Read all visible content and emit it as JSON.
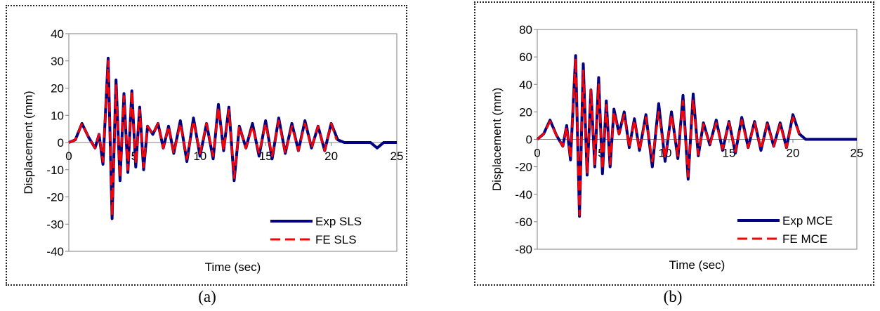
{
  "panels": [
    {
      "caption": "(a)",
      "chart_data": {
        "type": "line",
        "title": "",
        "xlabel": "Time (sec)",
        "ylabel": "Displacement (mm)",
        "xlim": [
          0,
          25
        ],
        "ylim": [
          -40,
          40
        ],
        "xticks": [
          "0",
          "5",
          "10",
          "15",
          "20",
          "25"
        ],
        "yticks": [
          "-40",
          "-30",
          "-20",
          "-10",
          "0",
          "10",
          "20",
          "30",
          "40"
        ],
        "legend": "bottom-right",
        "grid": false,
        "series": [
          {
            "name": "Exp SLS",
            "color": "#000080",
            "style": "solid",
            "x": [
              0,
              0.5,
              1.0,
              1.5,
              2.0,
              2.3,
              2.6,
              3.0,
              3.3,
              3.6,
              3.9,
              4.2,
              4.5,
              4.8,
              5.1,
              5.4,
              5.7,
              6.0,
              6.4,
              6.8,
              7.2,
              7.6,
              8.0,
              8.5,
              9.0,
              9.5,
              10.0,
              10.5,
              11.0,
              11.4,
              11.8,
              12.2,
              12.6,
              13.0,
              13.5,
              14.0,
              14.5,
              15.0,
              15.5,
              16.0,
              16.5,
              17.0,
              17.5,
              18.0,
              18.5,
              19.0,
              19.5,
              20.0,
              20.5,
              21.0,
              22.0,
              23.0,
              23.5,
              24.0,
              24.5,
              25.0
            ],
            "y": [
              0,
              1,
              7,
              2,
              -2,
              3,
              -8,
              31,
              -28,
              23,
              -14,
              18,
              -11,
              19,
              -9,
              13,
              -10,
              6,
              3,
              7,
              -2,
              6,
              -4,
              8,
              -7,
              9,
              -5,
              7,
              -6,
              14,
              -3,
              13,
              -14,
              6,
              -2,
              7,
              -5,
              8,
              -6,
              9,
              -4,
              7,
              -3,
              8,
              -2,
              6,
              -3,
              7,
              1,
              0,
              0,
              0,
              -2,
              0,
              0,
              0
            ]
          },
          {
            "name": "FE SLS",
            "color": "#ff0000",
            "style": "dashed",
            "x": [
              0,
              0.5,
              1.0,
              1.5,
              2.0,
              2.3,
              2.6,
              3.0,
              3.3,
              3.6,
              3.9,
              4.2,
              4.5,
              4.8,
              5.1,
              5.4,
              5.7,
              6.0,
              6.4,
              6.8,
              7.2,
              7.6,
              8.0,
              8.5,
              9.0,
              9.5,
              10.0,
              10.5,
              11.0,
              11.4,
              11.8,
              12.2,
              12.6,
              13.0,
              13.5,
              14.0,
              14.5,
              15.0,
              15.5,
              16.0,
              16.5,
              17.0,
              17.5,
              18.0,
              18.5,
              19.0,
              19.5,
              20.0,
              20.4
            ],
            "y": [
              0,
              1,
              7,
              2,
              -2,
              3,
              -7,
              30,
              -27,
              21,
              -13,
              17,
              -10,
              19,
              -8,
              12,
              -9,
              6,
              3,
              7,
              -2,
              6,
              -4,
              7,
              -6,
              8,
              -4,
              7,
              -5,
              13,
              -3,
              12,
              -13,
              6,
              -2,
              6,
              -4,
              7,
              -5,
              8,
              -4,
              6,
              -3,
              7,
              -2,
              6,
              -3,
              7,
              1
            ]
          }
        ]
      }
    },
    {
      "caption": "(b)",
      "chart_data": {
        "type": "line",
        "title": "",
        "xlabel": "Time (sec)",
        "ylabel": "Displacement (mm)",
        "xlim": [
          0,
          25
        ],
        "ylim": [
          -80,
          80
        ],
        "xticks": [
          "0",
          "5",
          "10",
          "15",
          "20",
          "25"
        ],
        "yticks": [
          "-80",
          "-60",
          "-40",
          "-20",
          "0",
          "20",
          "40",
          "60",
          "80"
        ],
        "legend": "bottom-right",
        "grid": false,
        "series": [
          {
            "name": "Exp MCE",
            "color": "#000080",
            "style": "solid",
            "x": [
              0,
              0.5,
              1.0,
              1.5,
              2.0,
              2.3,
              2.6,
              3.0,
              3.3,
              3.6,
              3.9,
              4.2,
              4.5,
              4.8,
              5.1,
              5.4,
              5.7,
              6.0,
              6.4,
              6.8,
              7.2,
              7.6,
              8.0,
              8.5,
              9.0,
              9.5,
              10.0,
              10.5,
              11.0,
              11.4,
              11.8,
              12.2,
              12.6,
              13.0,
              13.5,
              14.0,
              14.5,
              15.0,
              15.5,
              16.0,
              16.5,
              17.0,
              17.5,
              18.0,
              18.5,
              19.0,
              19.5,
              20.0,
              20.5,
              21.0,
              22.0,
              23.0,
              24.0,
              25.0
            ],
            "y": [
              0,
              4,
              14,
              3,
              -5,
              10,
              -15,
              61,
              -56,
              55,
              -26,
              36,
              -20,
              45,
              -25,
              28,
              -20,
              22,
              4,
              20,
              -6,
              15,
              -8,
              18,
              -20,
              26,
              -16,
              20,
              -14,
              32,
              -29,
              33,
              -12,
              12,
              -4,
              14,
              -8,
              13,
              -10,
              16,
              -6,
              13,
              -8,
              12,
              -5,
              12,
              -6,
              18,
              4,
              0,
              0,
              0,
              0,
              0
            ]
          },
          {
            "name": "FE MCE",
            "color": "#ff0000",
            "style": "dashed",
            "x": [
              0,
              0.5,
              1.0,
              1.5,
              2.0,
              2.3,
              2.6,
              3.0,
              3.3,
              3.6,
              3.9,
              4.2,
              4.5,
              4.8,
              5.1,
              5.4,
              5.7,
              6.0,
              6.4,
              6.8,
              7.2,
              7.6,
              8.0,
              8.5,
              9.0,
              9.5,
              10.0,
              10.5,
              11.0,
              11.4,
              11.8,
              12.2,
              12.6,
              13.0,
              13.5,
              14.0,
              14.5,
              15.0,
              15.5,
              16.0,
              16.5,
              17.0,
              17.5,
              18.0,
              18.5,
              19.0,
              19.5,
              20.0,
              20.5
            ],
            "y": [
              0,
              4,
              13,
              3,
              -5,
              9,
              -14,
              59,
              -55,
              50,
              -24,
              36,
              -18,
              40,
              -22,
              25,
              -18,
              20,
              4,
              18,
              -6,
              14,
              -8,
              16,
              -16,
              20,
              -14,
              18,
              -12,
              28,
              -27,
              29,
              -11,
              11,
              -4,
              12,
              -7,
              12,
              -9,
              14,
              -6,
              12,
              -7,
              11,
              -5,
              11,
              -6,
              16,
              4
            ]
          }
        ]
      }
    }
  ]
}
